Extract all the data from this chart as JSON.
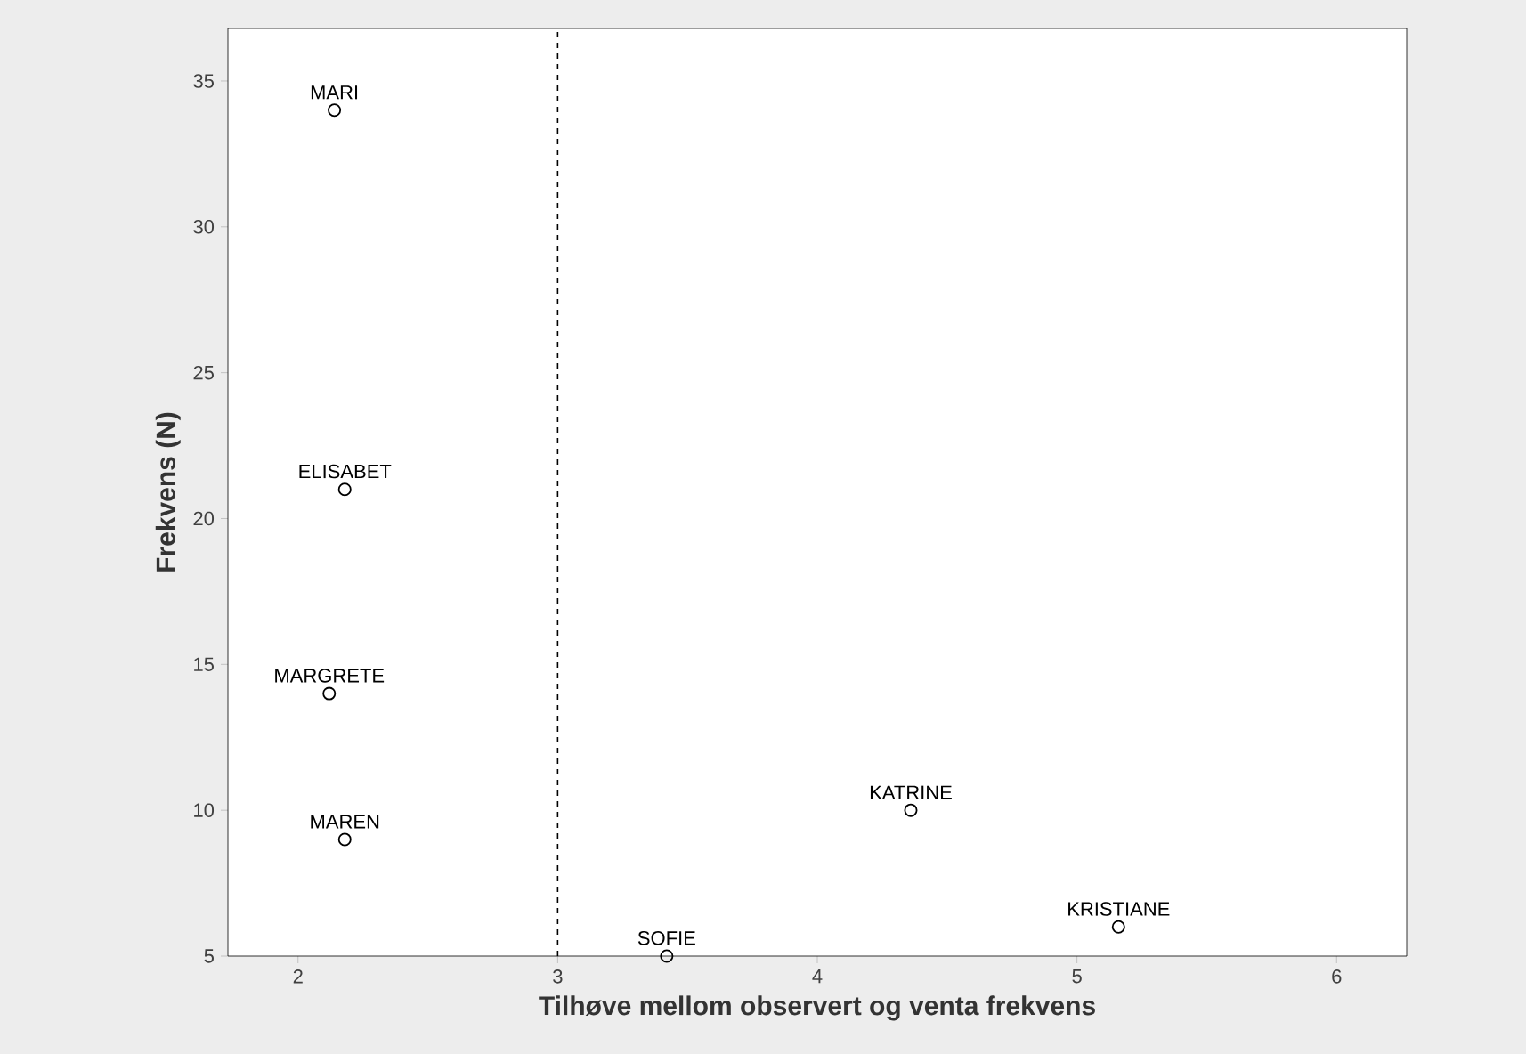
{
  "chart_data": {
    "type": "scatter",
    "xlabel": "Tilhøve mellom observert og venta frekvens",
    "ylabel": "Frekvens (N)",
    "series": [
      {
        "color": "#000000",
        "x": [
          2.14,
          2.18,
          2.12,
          2.18,
          3.42,
          4.36,
          5.16
        ],
        "values": [
          34,
          21,
          14,
          9,
          5,
          10,
          6
        ]
      }
    ],
    "marker": "circle",
    "xlim": [
      1.73,
      6.27
    ],
    "ylim": [
      5,
      36.8
    ],
    "xticks": [
      2,
      3,
      4,
      5,
      6
    ],
    "yticks": [
      5,
      10,
      15,
      20,
      25,
      30,
      35
    ],
    "grid": false,
    "ref_lines": [
      {
        "axis": "x",
        "value": 3,
        "line_style": "dashed",
        "color": "#000000"
      }
    ],
    "annotations": [
      {
        "text": "MARI",
        "x": 2.14,
        "y": 34
      },
      {
        "text": "ELISABET",
        "x": 2.18,
        "y": 21
      },
      {
        "text": "MARGRETE",
        "x": 2.12,
        "y": 14
      },
      {
        "text": "MAREN",
        "x": 2.18,
        "y": 9
      },
      {
        "text": "SOFIE",
        "x": 3.42,
        "y": 5
      },
      {
        "text": "KATRINE",
        "x": 4.36,
        "y": 10
      },
      {
        "text": "KRISTIANE",
        "x": 5.16,
        "y": 6
      }
    ]
  }
}
